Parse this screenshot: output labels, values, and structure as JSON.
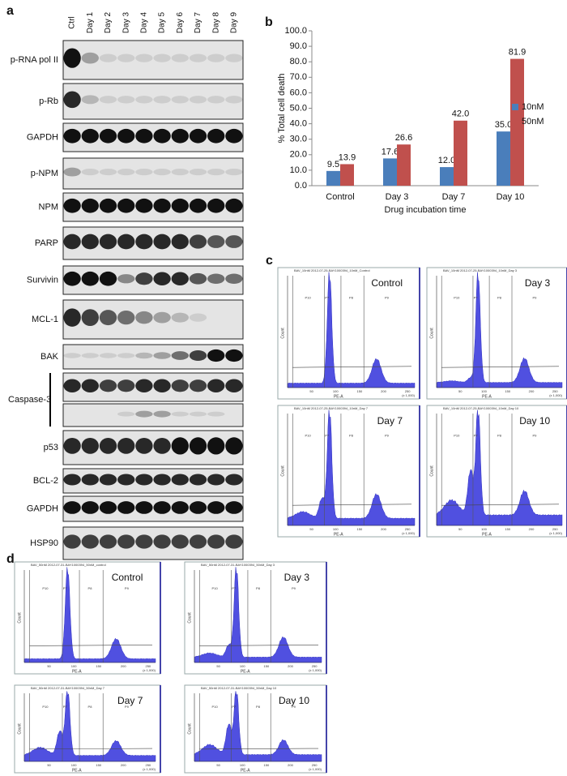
{
  "panel_labels": [
    "a",
    "b",
    "c",
    "d"
  ],
  "blot": {
    "lanes": [
      "Ctrl",
      "Day 1",
      "Day 2",
      "Day 3",
      "Day 4",
      "Day 5",
      "Day 6",
      "Day 7",
      "Day 8",
      "Day 9"
    ],
    "proteins": [
      "p-RNA pol II",
      "p-Rb",
      "GAPDH",
      "p-NPM",
      "NPM",
      "PARP",
      "Survivin",
      "MCL-1",
      "BAK",
      "Caspase-3",
      "p53",
      "BCL-2",
      "GAPDH",
      "HSP90"
    ]
  },
  "chart_data": {
    "type": "bar",
    "ylabel": "% Total cell death",
    "xlabel": "Drug incubation time",
    "categories": [
      "Control",
      "Day 3",
      "Day 7",
      "Day 10"
    ],
    "series": [
      {
        "name": "10nM",
        "color": "#4a7ebb",
        "values": [
          9.5,
          17.6,
          12.0,
          35.0
        ],
        "value_labels": [
          "9.5",
          "17.6",
          "12.0",
          "35.0"
        ]
      },
      {
        "name": "50nM",
        "color": "#c0504d",
        "values": [
          13.9,
          26.6,
          42.0,
          81.9
        ],
        "value_labels": [
          "13.9",
          "26.6",
          "42.0",
          "81.9"
        ]
      }
    ],
    "ylim": [
      0,
      100
    ],
    "yticks": [
      {
        "value": 0,
        "label": "0.0"
      },
      {
        "value": 10,
        "label": "10.0"
      },
      {
        "value": 20,
        "label": "20.0"
      },
      {
        "value": 30,
        "label": "30.0"
      },
      {
        "value": 40,
        "label": "40.0"
      },
      {
        "value": 50,
        "label": "50.0"
      },
      {
        "value": 60,
        "label": "60.0"
      },
      {
        "value": 70,
        "label": "70.0"
      },
      {
        "value": 80,
        "label": "80.0"
      },
      {
        "value": 90,
        "label": "90.0"
      },
      {
        "value": 100,
        "label": "100.0"
      }
    ],
    "legend": "right"
  },
  "flow_axes": {
    "xlabel": "PE-A",
    "ylabel": "Count",
    "gates": [
      "P10",
      "P7",
      "P8",
      "P9"
    ],
    "xticks": [
      "50",
      "100",
      "150",
      "200",
      "250"
    ],
    "x_unit": "(x 1,000)"
  },
  "flow_c": {
    "titles": [
      "Control",
      "Day 3",
      "Day 7",
      "Day 10"
    ],
    "headers": [
      "BAV_10nM 2012-07-25-BAY1000394_10nM_Control",
      "BAV_10nM 2012-07-25-BAY1000394_10nM_Day 3",
      "BAV_10nM 2012-07-25-BAY1000394_10nM_Day 7",
      "BAV_10nM 2012-07-25-BAY1000394_10nM_Day 10"
    ]
  },
  "flow_d": {
    "titles": [
      "Control",
      "Day 3",
      "Day 7",
      "Day 10"
    ],
    "headers": [
      "BAV_50nM 2012-07-31-BAY1000394_50nM_control",
      "BAV_50nM 2012-07-31-BAY1000394_50nM_Day 3",
      "BAV_50nM 2012-07-31-BAY1000394_50nM_Day 7",
      "BAV_50nM 2012-07-31-BAY1000394_50nM_Day 10"
    ]
  }
}
